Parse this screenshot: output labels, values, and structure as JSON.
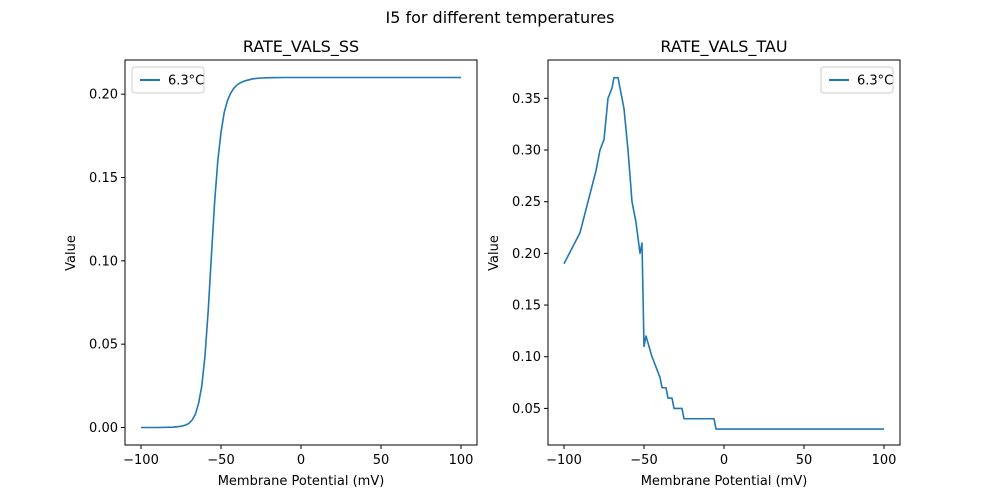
{
  "figure": {
    "suptitle": "I5 for different temperatures"
  },
  "chart_data": [
    {
      "type": "line",
      "title": "RATE_VALS_SS",
      "xlabel": "Membrane Potential (mV)",
      "ylabel": "Value",
      "xlim": [
        -110,
        110
      ],
      "ylim": [
        -0.0105,
        0.2205
      ],
      "xticks": [
        -100,
        -50,
        0,
        50,
        100
      ],
      "xtick_labels": [
        "−100",
        "−50",
        "0",
        "50",
        "100"
      ],
      "yticks": [
        0.0,
        0.05,
        0.1,
        0.15,
        0.2
      ],
      "ytick_labels": [
        "0.00",
        "0.05",
        "0.10",
        "0.15",
        "0.20"
      ],
      "grid": false,
      "legend": {
        "position": "top-left",
        "entries": [
          "6.3°C"
        ]
      },
      "series": [
        {
          "name": "6.3°C",
          "color": "#1f77b4",
          "x": [
            -100,
            -90,
            -80,
            -75,
            -72,
            -70,
            -68,
            -66,
            -64,
            -62,
            -60,
            -58,
            -56,
            -54,
            -52,
            -50,
            -48,
            -46,
            -44,
            -42,
            -40,
            -38,
            -35,
            -30,
            -25,
            -20,
            -10,
            0,
            25,
            50,
            75,
            100
          ],
          "y": [
            0.0,
            0.0,
            0.0002,
            0.0007,
            0.0015,
            0.0025,
            0.0045,
            0.008,
            0.0145,
            0.025,
            0.043,
            0.07,
            0.103,
            0.135,
            0.16,
            0.177,
            0.189,
            0.196,
            0.2005,
            0.2035,
            0.2055,
            0.2068,
            0.208,
            0.2092,
            0.2097,
            0.2099,
            0.21,
            0.21,
            0.21,
            0.21,
            0.21,
            0.21
          ]
        }
      ]
    },
    {
      "type": "line",
      "title": "RATE_VALS_TAU",
      "xlabel": "Membrane Potential (mV)",
      "ylabel": "Value",
      "xlim": [
        -110,
        110
      ],
      "ylim": [
        0.0146,
        0.3871
      ],
      "xticks": [
        -100,
        -50,
        0,
        50,
        100
      ],
      "xtick_labels": [
        "−100",
        "−50",
        "0",
        "50",
        "100"
      ],
      "yticks": [
        0.05,
        0.1,
        0.15,
        0.2,
        0.25,
        0.3,
        0.35
      ],
      "ytick_labels": [
        "0.05",
        "0.10",
        "0.15",
        "0.20",
        "0.25",
        "0.30",
        "0.35"
      ],
      "grid": false,
      "legend": {
        "position": "top-right",
        "entries": [
          "6.3°C"
        ]
      },
      "series": [
        {
          "name": "6.3°C",
          "color": "#1f77b4",
          "x": [
            -100,
            -90,
            -80,
            -77.5,
            -75,
            -72.5,
            -70,
            -68.75,
            -66.25,
            -65,
            -62.5,
            -60,
            -57.5,
            -55,
            -52.5,
            -51.25,
            -50,
            -48.75,
            -45,
            -42.5,
            -40,
            -38.75,
            -37.5,
            -36.25,
            -35,
            -33.75,
            -32.5,
            -31.25,
            -30,
            -28.75,
            -27.5,
            -26.25,
            -25,
            -23.75,
            -22.5,
            -21.25,
            -20,
            -18.75,
            -17.5,
            -16.25,
            -15,
            -13.75,
            -12.5,
            -11.25,
            -10,
            -8.75,
            -7.5,
            -6.25,
            -5,
            -3.75,
            0,
            25,
            50,
            75,
            100
          ],
          "y": [
            0.19,
            0.22,
            0.28,
            0.3,
            0.31,
            0.35,
            0.36,
            0.37,
            0.37,
            0.36,
            0.34,
            0.3,
            0.25,
            0.23,
            0.2,
            0.21,
            0.11,
            0.12,
            0.1,
            0.09,
            0.08,
            0.07,
            0.07,
            0.07,
            0.06,
            0.06,
            0.06,
            0.05,
            0.05,
            0.05,
            0.05,
            0.05,
            0.04,
            0.04,
            0.04,
            0.04,
            0.04,
            0.04,
            0.04,
            0.04,
            0.04,
            0.04,
            0.04,
            0.04,
            0.04,
            0.04,
            0.04,
            0.04,
            0.03,
            0.03,
            0.03,
            0.03,
            0.03,
            0.03,
            0.03
          ]
        }
      ]
    }
  ]
}
